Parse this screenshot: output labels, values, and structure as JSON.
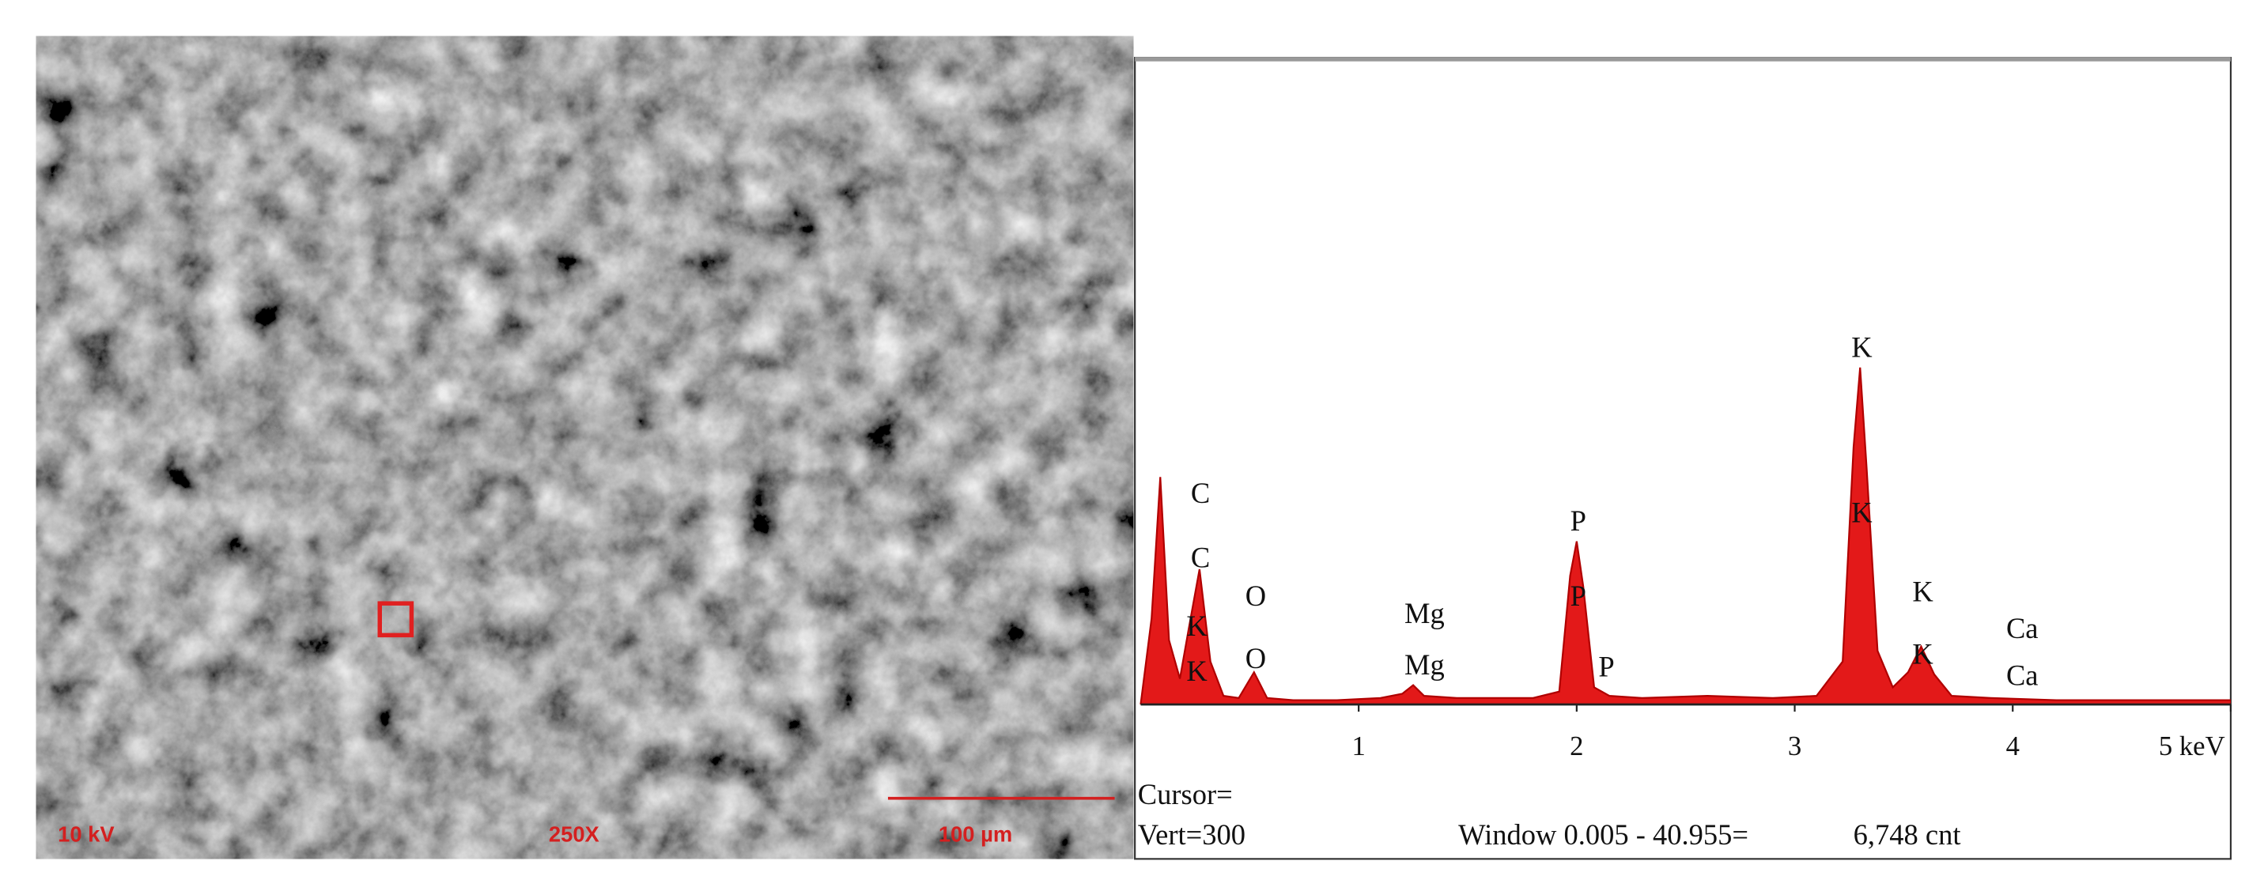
{
  "sem": {
    "labels": [
      "10 kV",
      "250X",
      "100 µm"
    ]
  },
  "chart_data": {
    "type": "area",
    "color": "#e00000",
    "x": [
      0,
      0.05,
      0.09,
      0.13,
      0.18,
      0.22,
      0.27,
      0.32,
      0.38,
      0.45,
      0.52,
      0.58,
      0.7,
      0.9,
      1.1,
      1.2,
      1.25,
      1.3,
      1.45,
      1.6,
      1.8,
      1.92,
      1.97,
      2.0,
      2.03,
      2.08,
      2.15,
      2.3,
      2.6,
      2.9,
      3.1,
      3.22,
      3.27,
      3.3,
      3.33,
      3.38,
      3.45,
      3.52,
      3.58,
      3.64,
      3.72,
      3.9,
      4.2,
      4.6,
      5.0
    ],
    "values": [
      0,
      40,
      106,
      30,
      12,
      35,
      63,
      20,
      4,
      3,
      15,
      3,
      2,
      2,
      3,
      5,
      9,
      4,
      3,
      3,
      3,
      6,
      60,
      76,
      55,
      8,
      4,
      3,
      4,
      3,
      4,
      20,
      120,
      157,
      110,
      25,
      8,
      15,
      27,
      14,
      4,
      3,
      2,
      2,
      2
    ],
    "xlim": [
      0,
      5
    ],
    "xticks": [
      1,
      2,
      3,
      4,
      {
        "value": 5,
        "label": "5 keV"
      }
    ],
    "ylim": [
      0,
      300
    ],
    "annotations": [
      {
        "text": "C",
        "x": 0.23,
        "y": 94
      },
      {
        "text": "C",
        "x": 0.23,
        "y": 64
      },
      {
        "text": "K",
        "x": 0.21,
        "y": 32
      },
      {
        "text": "K",
        "x": 0.21,
        "y": 11
      },
      {
        "text": "O",
        "x": 0.48,
        "y": 46
      },
      {
        "text": "O",
        "x": 0.48,
        "y": 17
      },
      {
        "text": "Mg",
        "x": 1.21,
        "y": 38
      },
      {
        "text": "Mg",
        "x": 1.21,
        "y": 14
      },
      {
        "text": "P",
        "x": 1.97,
        "y": 81
      },
      {
        "text": "P",
        "x": 1.97,
        "y": 46
      },
      {
        "text": "P",
        "x": 2.1,
        "y": 13
      },
      {
        "text": "K",
        "x": 3.26,
        "y": 162
      },
      {
        "text": "K",
        "x": 3.26,
        "y": 85
      },
      {
        "text": "K",
        "x": 3.54,
        "y": 48
      },
      {
        "text": "K",
        "x": 3.54,
        "y": 19
      },
      {
        "text": "Ca",
        "x": 3.97,
        "y": 31
      },
      {
        "text": "Ca",
        "x": 3.97,
        "y": 9
      }
    ],
    "footer": [
      "Cursor=",
      "Vert=300",
      "Window 0.005 - 40.955=",
      "6,748 cnt"
    ]
  }
}
